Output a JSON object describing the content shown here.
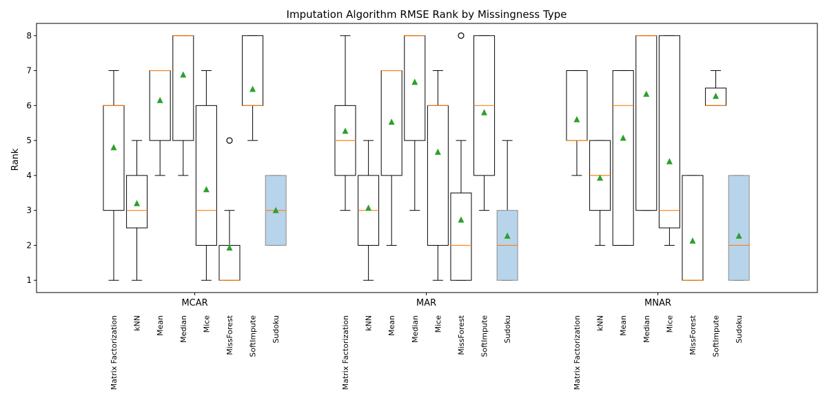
{
  "chart_data": {
    "type": "box",
    "title": "Imputation Algorithm RMSE Rank by Missingness Type",
    "ylabel": "Rank",
    "xlabel": "",
    "ylim": [
      0.65,
      8.35
    ],
    "yticks": [
      "1",
      "2",
      "3",
      "4",
      "5",
      "6",
      "7",
      "8"
    ],
    "grid": false,
    "colors": {
      "box_edge": "#000000",
      "median": "#ff7f0e",
      "mean_marker": "#2ca02c",
      "highlight_fill": "#b7d4ea",
      "highlight_edge": "#8a8a8a"
    },
    "groups": [
      {
        "name": "MCAR",
        "boxes": [
          {
            "label": "Matrix Factorization",
            "whislo": 1,
            "q1": 3,
            "med": 6,
            "q3": 6,
            "whishi": 7,
            "mean": 4.8,
            "fliers": []
          },
          {
            "label": "kNN",
            "whislo": 1,
            "q1": 2.5,
            "med": 3,
            "q3": 4,
            "whishi": 5,
            "mean": 3.2,
            "fliers": []
          },
          {
            "label": "Mean",
            "whislo": 4,
            "q1": 5,
            "med": 7,
            "q3": 7,
            "whishi": 7,
            "mean": 6.15,
            "fliers": []
          },
          {
            "label": "Median",
            "whislo": 4,
            "q1": 5,
            "med": 8,
            "q3": 8,
            "whishi": 8,
            "mean": 6.88,
            "fliers": []
          },
          {
            "label": "Mice",
            "whislo": 1,
            "q1": 2,
            "med": 3,
            "q3": 6,
            "whishi": 7,
            "mean": 3.6,
            "fliers": []
          },
          {
            "label": "MissForest",
            "whislo": 1,
            "q1": 1,
            "med": 1,
            "q3": 2,
            "whishi": 3,
            "mean": 1.93,
            "fliers": [
              5
            ]
          },
          {
            "label": "SoftImpute",
            "whislo": 5,
            "q1": 6,
            "med": 6,
            "q3": 8,
            "whishi": 8,
            "mean": 6.47,
            "fliers": []
          },
          {
            "label": "Sudoku",
            "whislo": 2,
            "q1": 2,
            "med": 3,
            "q3": 4,
            "whishi": 4,
            "mean": 3.0,
            "fliers": [],
            "highlight": true
          }
        ]
      },
      {
        "name": "MAR",
        "boxes": [
          {
            "label": "Matrix Factorization",
            "whislo": 3,
            "q1": 4,
            "med": 5,
            "q3": 6,
            "whishi": 8,
            "mean": 5.27,
            "fliers": []
          },
          {
            "label": "kNN",
            "whislo": 1,
            "q1": 2,
            "med": 3,
            "q3": 4,
            "whishi": 5,
            "mean": 3.07,
            "fliers": []
          },
          {
            "label": "Mean",
            "whislo": 2,
            "q1": 4,
            "med": 7,
            "q3": 7,
            "whishi": 7,
            "mean": 5.53,
            "fliers": []
          },
          {
            "label": "Median",
            "whislo": 3,
            "q1": 5,
            "med": 8,
            "q3": 8,
            "whishi": 8,
            "mean": 6.67,
            "fliers": []
          },
          {
            "label": "Mice",
            "whislo": 1,
            "q1": 2,
            "med": 6,
            "q3": 6,
            "whishi": 7,
            "mean": 4.67,
            "fliers": []
          },
          {
            "label": "MissForest",
            "whislo": 1,
            "q1": 1,
            "med": 2,
            "q3": 3.5,
            "whishi": 5,
            "mean": 2.73,
            "fliers": [
              8
            ]
          },
          {
            "label": "SoftImpute",
            "whislo": 3,
            "q1": 4,
            "med": 6,
            "q3": 8,
            "whishi": 8,
            "mean": 5.8,
            "fliers": []
          },
          {
            "label": "Sudoku",
            "whislo": 1,
            "q1": 1,
            "med": 2,
            "q3": 3,
            "whishi": 5,
            "mean": 2.27,
            "fliers": [],
            "highlight": true
          }
        ]
      },
      {
        "name": "MNAR",
        "boxes": [
          {
            "label": "Matrix Factorization",
            "whislo": 4,
            "q1": 5,
            "med": 5,
            "q3": 7,
            "whishi": 7,
            "mean": 5.6,
            "fliers": []
          },
          {
            "label": "kNN",
            "whislo": 2,
            "q1": 3,
            "med": 4,
            "q3": 5,
            "whishi": 5,
            "mean": 3.93,
            "fliers": []
          },
          {
            "label": "Mean",
            "whislo": 2,
            "q1": 2,
            "med": 6,
            "q3": 7,
            "whishi": 7,
            "mean": 5.07,
            "fliers": []
          },
          {
            "label": "Median",
            "whislo": 3,
            "q1": 3,
            "med": 8,
            "q3": 8,
            "whishi": 8,
            "mean": 6.33,
            "fliers": []
          },
          {
            "label": "Mice",
            "whislo": 2,
            "q1": 2.5,
            "med": 3,
            "q3": 8,
            "whishi": 8,
            "mean": 4.4,
            "fliers": []
          },
          {
            "label": "MissForest",
            "whislo": 1,
            "q1": 1,
            "med": 1,
            "q3": 4,
            "whishi": 4,
            "mean": 2.13,
            "fliers": []
          },
          {
            "label": "SoftImpute",
            "whislo": 6,
            "q1": 6,
            "med": 6,
            "q3": 6.5,
            "whishi": 7,
            "mean": 6.27,
            "fliers": []
          },
          {
            "label": "Sudoku",
            "whislo": 1,
            "q1": 1,
            "med": 2,
            "q3": 4,
            "whishi": 4,
            "mean": 2.27,
            "fliers": [],
            "highlight": true
          }
        ]
      }
    ]
  }
}
